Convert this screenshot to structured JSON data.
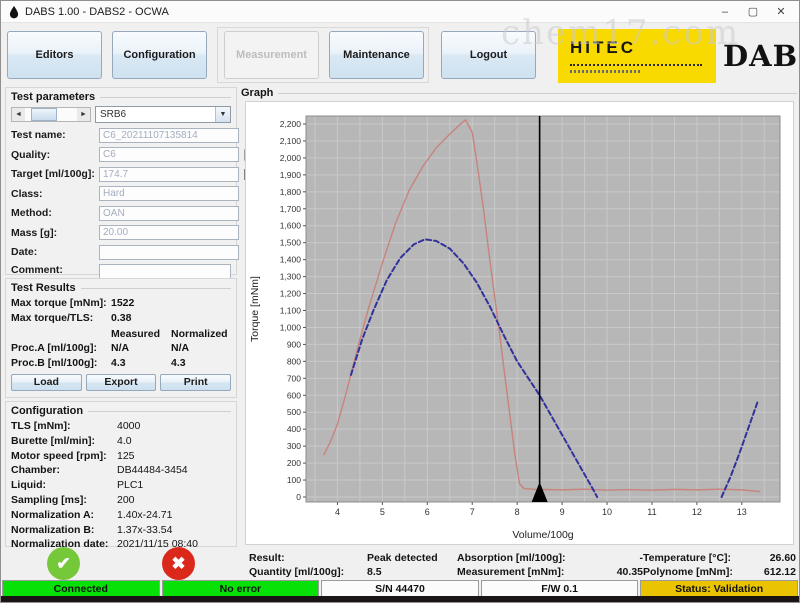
{
  "window": {
    "title": "DABS 1.00 - DABS2 - OCWA",
    "minimize": "–",
    "maximize": "▢",
    "close": "✕"
  },
  "watermark": "chem17.com",
  "toolbar": {
    "editors": "Editors",
    "configuration": "Configuration",
    "measurement": "Measurement",
    "maintenance": "Maintenance",
    "logout": "Logout"
  },
  "logo": {
    "hitec": "HITEC",
    "dabs": "DABS"
  },
  "test_parameters": {
    "title": "Test parameters",
    "selector_value": "SRB6",
    "fields": [
      {
        "label": "Test name:",
        "value": "C6_20211107135814"
      },
      {
        "label": "Quality:",
        "value": "C6"
      },
      {
        "label": "Target [ml/100g]:",
        "value": "174.7"
      },
      {
        "label": "Class:",
        "value": "Hard"
      },
      {
        "label": "Method:",
        "value": "OAN"
      },
      {
        "label": "Mass [g]:",
        "value": "20.00"
      },
      {
        "label": "Date:",
        "value": ""
      },
      {
        "label": "Comment:",
        "value": ""
      }
    ]
  },
  "test_results": {
    "title": "Test Results",
    "max_torque_label": "Max torque [mNm]:",
    "max_torque_value": "1522",
    "max_torque_tls_label": "Max torque/TLS:",
    "max_torque_tls_value": "0.38",
    "col_measured": "Measured",
    "col_normalized": "Normalized",
    "proc_a_label": "Proc.A [ml/100g]:",
    "proc_a_measured": "N/A",
    "proc_a_normalized": "N/A",
    "proc_b_label": "Proc.B [ml/100g]:",
    "proc_b_measured": "4.3",
    "proc_b_normalized": "4.3",
    "load": "Load",
    "export": "Export",
    "print": "Print"
  },
  "configuration": {
    "title": "Configuration",
    "rows": [
      {
        "label": "TLS [mNm]:",
        "value": "4000"
      },
      {
        "label": "Burette [ml/min]:",
        "value": "4.0"
      },
      {
        "label": "Motor speed [rpm]:",
        "value": "125"
      },
      {
        "label": "Chamber:",
        "value": "DB44484-3454"
      },
      {
        "label": "Liquid:",
        "value": "PLC1"
      },
      {
        "label": "Sampling [ms]:",
        "value": "200"
      },
      {
        "label": "Normalization A:",
        "value": "1.40x-24.71"
      },
      {
        "label": "Normalization B:",
        "value": "1.37x-33.54"
      },
      {
        "label": "Normalization date:",
        "value": "2021/11/15 08:40"
      }
    ]
  },
  "graph": {
    "title": "Graph"
  },
  "chart_data": {
    "type": "line",
    "title": "",
    "xlabel": "Volume/100g",
    "ylabel": "Torque [mNm]",
    "xlim": [
      3.3,
      13.85
    ],
    "ylim": [
      0,
      2200
    ],
    "xticks": {
      "min": 4,
      "max": 13,
      "step": 1
    },
    "yticks": {
      "min": 0,
      "max": 2200,
      "step": 100
    },
    "x_grid_step": 0.5,
    "grid": true,
    "legend": "none",
    "plot_bg": "#b7b7b7",
    "grid_color": "#c9c9c9",
    "marker_x": 8.5,
    "marker_color": "#000000",
    "series": [
      {
        "name": "measured-torque",
        "color": "#c8837c",
        "style": "solid",
        "width": 1.4,
        "points": [
          [
            3.7,
            250
          ],
          [
            3.85,
            330
          ],
          [
            4.0,
            430
          ],
          [
            4.2,
            620
          ],
          [
            4.45,
            880
          ],
          [
            4.7,
            1120
          ],
          [
            5.0,
            1380
          ],
          [
            5.3,
            1620
          ],
          [
            5.6,
            1810
          ],
          [
            5.9,
            1950
          ],
          [
            6.2,
            2060
          ],
          [
            6.5,
            2140
          ],
          [
            6.7,
            2190
          ],
          [
            6.85,
            2225
          ],
          [
            7.0,
            2150
          ],
          [
            7.1,
            1980
          ],
          [
            7.25,
            1700
          ],
          [
            7.4,
            1380
          ],
          [
            7.6,
            980
          ],
          [
            7.8,
            560
          ],
          [
            7.95,
            250
          ],
          [
            8.05,
            80
          ],
          [
            8.15,
            50
          ],
          [
            8.4,
            45
          ],
          [
            9.0,
            42
          ],
          [
            9.5,
            46
          ],
          [
            10.0,
            40
          ],
          [
            10.5,
            44
          ],
          [
            11.0,
            40
          ],
          [
            11.5,
            45
          ],
          [
            12.0,
            42
          ],
          [
            12.5,
            46
          ],
          [
            13.0,
            42
          ],
          [
            13.4,
            32
          ]
        ]
      },
      {
        "name": "polynomial-fit",
        "color": "#32329b",
        "style": "dashed",
        "width": 2,
        "points": [
          [
            4.3,
            720
          ],
          [
            4.55,
            930
          ],
          [
            4.8,
            1100
          ],
          [
            5.1,
            1280
          ],
          [
            5.4,
            1410
          ],
          [
            5.7,
            1490
          ],
          [
            5.95,
            1520
          ],
          [
            6.2,
            1510
          ],
          [
            6.5,
            1465
          ],
          [
            6.8,
            1380
          ],
          [
            7.1,
            1265
          ],
          [
            7.4,
            1120
          ],
          [
            7.7,
            955
          ],
          [
            8.0,
            800
          ],
          [
            8.3,
            680
          ],
          [
            8.5,
            600
          ],
          [
            8.8,
            460
          ],
          [
            9.1,
            320
          ],
          [
            9.4,
            180
          ],
          [
            9.7,
            40
          ],
          [
            9.78,
            0
          ]
        ]
      },
      {
        "name": "polynomial-fit-tail",
        "color": "#32329b",
        "style": "dashed",
        "width": 2,
        "points": [
          [
            12.55,
            0
          ],
          [
            12.75,
            120
          ],
          [
            12.95,
            260
          ],
          [
            13.15,
            410
          ],
          [
            13.35,
            560
          ]
        ]
      }
    ]
  },
  "results_bar": {
    "result_label": "Result:",
    "result_value": "Peak detected",
    "quantity_label": "Quantity [ml/100g]:",
    "quantity_value": "8.5",
    "absorption_label": "Absorption [ml/100g]:",
    "absorption_value": "-",
    "measurement_label": "Measurement [mNm]:",
    "measurement_value": "40.35",
    "temperature_label": "Temperature [°C]:",
    "temperature_value": "26.60",
    "polynome_label": "Polynome [mNm]:",
    "polynome_value": "612.12"
  },
  "action_buttons": {
    "confirm": "✔",
    "cancel": "✖"
  },
  "status_bar": {
    "items": [
      {
        "label": "Connected",
        "bg": "#07e107"
      },
      {
        "label": "No error",
        "bg": "#07e107"
      },
      {
        "label": "S/N 44470",
        "bg": "#fbfbfb"
      },
      {
        "label": "F/W 0.1",
        "bg": "#fbfbfb"
      },
      {
        "label": "Status: Validation",
        "bg": "#eac400"
      }
    ]
  }
}
